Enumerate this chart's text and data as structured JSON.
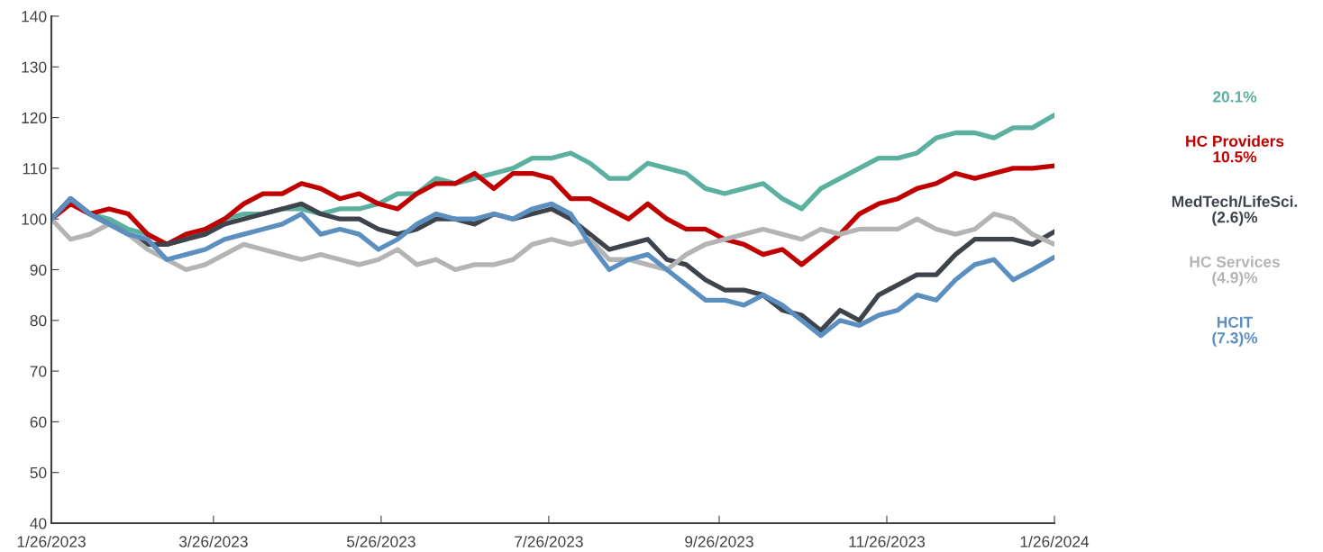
{
  "chart_data": {
    "type": "line",
    "line_style": "solid",
    "marker": "none",
    "grid": false,
    "legend": false,
    "x": [
      "2023-01-26",
      "2023-02-02",
      "2023-02-09",
      "2023-02-16",
      "2023-02-23",
      "2023-03-02",
      "2023-03-09",
      "2023-03-16",
      "2023-03-23",
      "2023-03-30",
      "2023-04-06",
      "2023-04-13",
      "2023-04-20",
      "2023-04-27",
      "2023-05-04",
      "2023-05-11",
      "2023-05-18",
      "2023-05-25",
      "2023-06-01",
      "2023-06-08",
      "2023-06-15",
      "2023-06-22",
      "2023-06-29",
      "2023-07-06",
      "2023-07-13",
      "2023-07-20",
      "2023-07-27",
      "2023-08-03",
      "2023-08-10",
      "2023-08-17",
      "2023-08-24",
      "2023-08-31",
      "2023-09-07",
      "2023-09-14",
      "2023-09-21",
      "2023-09-28",
      "2023-10-05",
      "2023-10-12",
      "2023-10-19",
      "2023-10-26",
      "2023-11-02",
      "2023-11-09",
      "2023-11-16",
      "2023-11-23",
      "2023-11-30",
      "2023-12-07",
      "2023-12-14",
      "2023-12-21",
      "2023-12-28",
      "2024-01-04",
      "2024-01-11",
      "2024-01-18",
      "2024-01-26"
    ],
    "series": [
      {
        "color": "#5bb0a0",
        "values": [
          100,
          104,
          101,
          100,
          98,
          97,
          95,
          96,
          98,
          100,
          101,
          101,
          102,
          102,
          101,
          102,
          102,
          103,
          105,
          105,
          108,
          107,
          108,
          109,
          110,
          112,
          112,
          113,
          111,
          108,
          108,
          111,
          110,
          109,
          106,
          105,
          106,
          107,
          104,
          102,
          106,
          108,
          110,
          112,
          112,
          113,
          116,
          117,
          117,
          116,
          118,
          118,
          120.5
        ]
      },
      {
        "name": "HC Providers",
        "color": "#c00000",
        "values": [
          100,
          103,
          101,
          102,
          101,
          97,
          95,
          97,
          98,
          100,
          103,
          105,
          105,
          107,
          106,
          104,
          105,
          103,
          102,
          105,
          107,
          107,
          109,
          106,
          109,
          109,
          108,
          104,
          104,
          102,
          100,
          103,
          100,
          98,
          98,
          96,
          95,
          93,
          94,
          91,
          94,
          97,
          101,
          103,
          104,
          106,
          107,
          109,
          108,
          109,
          110,
          110,
          110.5
        ]
      },
      {
        "name": "MedTech/LifeSci.",
        "color": "#3f444c",
        "values": [
          100,
          104,
          101,
          99,
          97,
          95,
          95,
          96,
          97,
          99,
          100,
          101,
          102,
          103,
          101,
          100,
          100,
          98,
          97,
          98,
          100,
          100,
          99,
          101,
          100,
          101,
          102,
          100,
          97,
          94,
          95,
          96,
          92,
          91,
          88,
          86,
          86,
          85,
          82,
          81,
          78,
          82,
          80,
          85,
          87,
          89,
          89,
          93,
          96,
          96,
          96,
          95,
          97.5
        ]
      },
      {
        "name": "HC Services",
        "color": "#b4b4b4",
        "values": [
          100,
          96,
          97,
          99,
          97,
          94,
          92,
          90,
          91,
          93,
          95,
          94,
          93,
          92,
          93,
          92,
          91,
          92,
          94,
          91,
          92,
          90,
          91,
          91,
          92,
          95,
          96,
          95,
          96,
          92,
          92,
          91,
          90,
          93,
          95,
          96,
          97,
          98,
          97,
          96,
          98,
          97,
          98,
          98,
          98,
          100,
          98,
          97,
          98,
          101,
          100,
          97,
          95
        ]
      },
      {
        "name": "HCIT",
        "color": "#5b8fc0",
        "values": [
          100,
          104,
          101,
          99,
          97,
          96,
          92,
          93,
          94,
          96,
          97,
          98,
          99,
          101,
          97,
          98,
          97,
          94,
          96,
          99,
          101,
          100,
          100,
          101,
          100,
          102,
          103,
          101,
          95,
          90,
          92,
          93,
          90,
          87,
          84,
          84,
          83,
          85,
          83,
          80,
          77,
          80,
          79,
          81,
          82,
          85,
          84,
          88,
          91,
          92,
          88,
          90,
          92.5
        ]
      }
    ],
    "annotations": [
      "20.1%",
      "10.5%",
      "(2.6)%",
      "(4.9)%",
      "(7.3)%"
    ],
    "xlim": [
      "2023-01-26",
      "2024-01-26"
    ],
    "xticks": [
      {
        "value": "2023-01-26",
        "label": "1/26/2023"
      },
      {
        "value": "2023-03-26",
        "label": "3/26/2023"
      },
      {
        "value": "2023-05-26",
        "label": "5/26/2023"
      },
      {
        "value": "2023-07-26",
        "label": "7/26/2023"
      },
      {
        "value": "2023-09-26",
        "label": "9/26/2023"
      },
      {
        "value": "2023-11-26",
        "label": "11/26/2023"
      },
      {
        "value": "2024-01-26",
        "label": "1/26/2024"
      }
    ],
    "ylim": [
      40,
      140
    ],
    "yticks": [
      40,
      50,
      60,
      70,
      80,
      90,
      100,
      110,
      120,
      130,
      140
    ]
  }
}
